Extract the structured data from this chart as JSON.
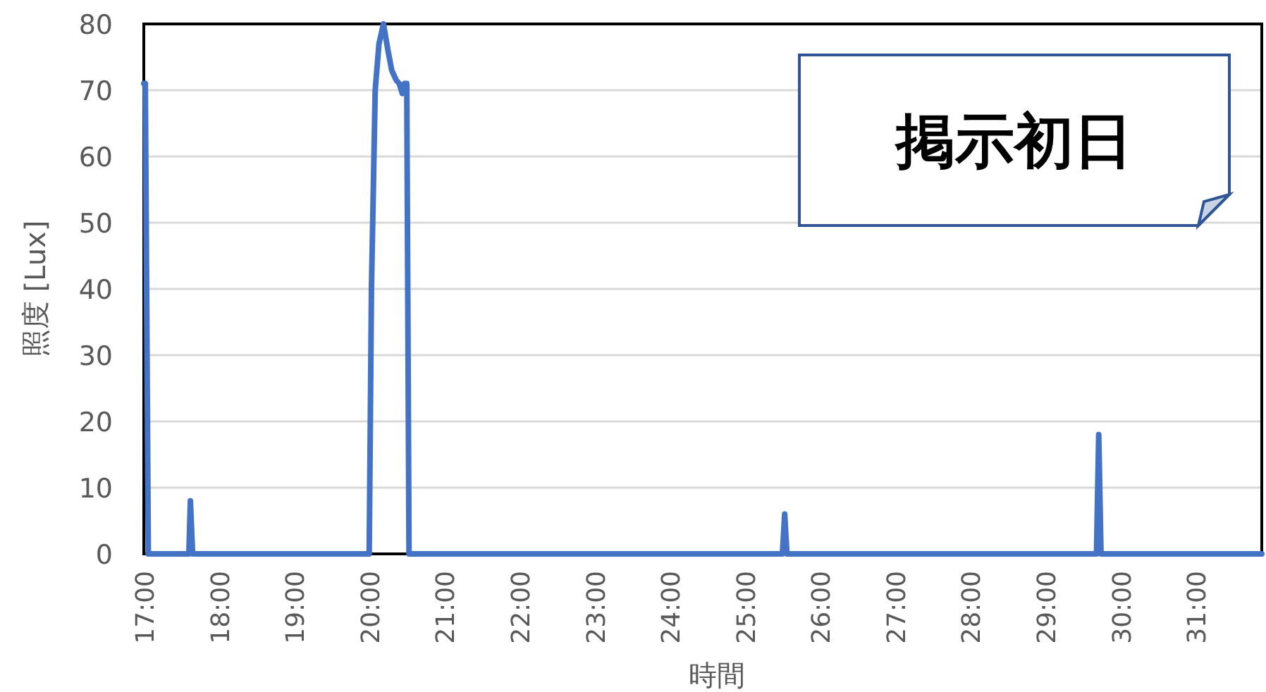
{
  "chart_data": {
    "type": "line",
    "xlabel": "時間",
    "ylabel": "照度 [Lux]",
    "annotations": [
      "掲示初日"
    ],
    "x": [
      17.0,
      17.02,
      17.06,
      17.08,
      17.6,
      17.62,
      17.65,
      20.0,
      20.03,
      20.08,
      20.13,
      20.19,
      20.25,
      20.3,
      20.36,
      20.4,
      20.44,
      20.47,
      20.5,
      20.53,
      20.56,
      20.6,
      20.63,
      25.5,
      25.53,
      25.56,
      29.68,
      29.71,
      29.74,
      31.88
    ],
    "series": [
      {
        "color": "#4472c4",
        "values": [
          71,
          71,
          0,
          0,
          0,
          8,
          0,
          0,
          40,
          70,
          77,
          80,
          76,
          73,
          71.5,
          71,
          69.5,
          71,
          71,
          0,
          0,
          0,
          0,
          0,
          6,
          0,
          0,
          18,
          0,
          0
        ]
      }
    ],
    "xlim": [
      17,
      31.88
    ],
    "ylim": [
      0,
      80
    ],
    "xticks": [
      {
        "value": 17,
        "label": "17:00"
      },
      {
        "value": 18,
        "label": "18:00"
      },
      {
        "value": 19,
        "label": "19:00"
      },
      {
        "value": 20,
        "label": "20:00"
      },
      {
        "value": 21,
        "label": "21:00"
      },
      {
        "value": 22,
        "label": "22:00"
      },
      {
        "value": 23,
        "label": "23:00"
      },
      {
        "value": 24,
        "label": "24:00"
      },
      {
        "value": 25,
        "label": "25:00"
      },
      {
        "value": 26,
        "label": "26:00"
      },
      {
        "value": 27,
        "label": "27:00"
      },
      {
        "value": 28,
        "label": "28:00"
      },
      {
        "value": 29,
        "label": "29:00"
      },
      {
        "value": 30,
        "label": "30:00"
      },
      {
        "value": 31,
        "label": "31:00"
      }
    ],
    "yticks": [
      0,
      10,
      20,
      30,
      40,
      50,
      60,
      70,
      80
    ],
    "grid": "y",
    "marker": "none",
    "line_style": "solid"
  }
}
